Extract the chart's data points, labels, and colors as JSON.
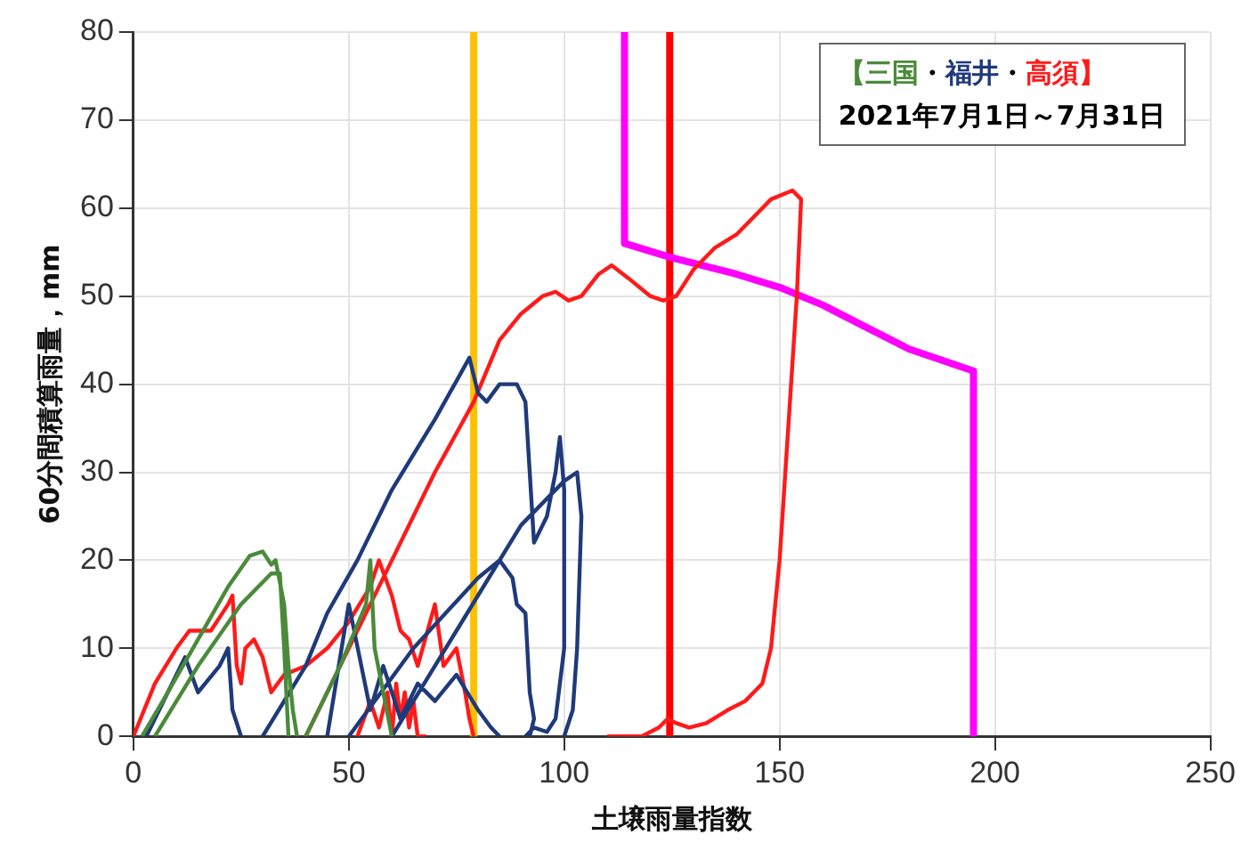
{
  "chart_data": {
    "type": "line",
    "xlabel": "土壌雨量指数",
    "ylabel": "60分間積算雨量，mm",
    "xlim": [
      0,
      250
    ],
    "ylim": [
      0,
      80
    ],
    "xticks": [
      0,
      50,
      100,
      150,
      200,
      250
    ],
    "yticks": [
      0,
      10,
      20,
      30,
      40,
      50,
      60,
      70,
      80
    ],
    "grid": true,
    "annotations": [
      "【三国・福井・高須】",
      "2021年7月1日～7月31日"
    ],
    "ref_lines": [
      {
        "axis": "x",
        "value": 79,
        "color": "#ffc000"
      },
      {
        "axis": "x",
        "value": 124.5,
        "color": "#ff0000"
      }
    ],
    "series": [
      {
        "color": "#4a8a3a",
        "x": [
          2,
          8,
          15,
          22,
          27,
          30,
          32,
          33,
          35,
          36,
          37,
          38,
          null,
          5,
          15,
          25,
          32,
          34,
          35,
          36,
          null,
          40,
          48,
          54,
          55,
          56,
          58,
          60
        ],
        "values": [
          0,
          5,
          11,
          17,
          20.5,
          21,
          19.5,
          20,
          15,
          8,
          3,
          0,
          null,
          0,
          8,
          15,
          18.5,
          18.5,
          10,
          0,
          null,
          0,
          8,
          15,
          20,
          10,
          5,
          0
        ]
      },
      {
        "color": "#1f3a7a",
        "x": [
          30,
          40,
          45,
          52,
          60,
          70,
          78,
          80,
          82,
          85,
          89,
          91,
          92,
          93,
          96,
          98,
          99,
          100,
          100,
          98,
          96,
          93,
          91,
          null,
          50,
          65,
          80,
          85,
          88,
          89,
          91,
          92,
          93,
          92,
          null,
          60,
          75,
          90,
          100,
          103,
          104,
          103,
          102,
          100,
          null,
          3,
          8,
          12,
          15,
          20,
          22,
          23,
          25,
          null,
          45,
          50,
          55,
          58,
          62,
          66,
          70,
          75,
          80,
          83,
          85
        ],
        "values": [
          0,
          8,
          14,
          20,
          28,
          36,
          43,
          39,
          38,
          40,
          40,
          38,
          30,
          22,
          25,
          30,
          34,
          28,
          10,
          2,
          0.5,
          1,
          0,
          null,
          0,
          10,
          18,
          20,
          18,
          15,
          14,
          5,
          2,
          0,
          null,
          0,
          12,
          24,
          29,
          30,
          25,
          10,
          3,
          0,
          null,
          0,
          5,
          9,
          5,
          8,
          10,
          3,
          0,
          null,
          0,
          15,
          3,
          8,
          2,
          6,
          4,
          7,
          3,
          1,
          0
        ]
      },
      {
        "color": "#ff1a1a",
        "x": [
          40,
          55,
          70,
          79,
          85,
          90,
          95,
          98,
          101,
          104,
          108,
          111,
          115,
          120,
          123,
          126,
          130,
          135,
          140,
          144,
          148,
          153,
          155,
          154,
          152,
          150,
          148,
          146,
          144,
          142,
          138,
          133,
          129,
          126,
          124,
          122,
          118,
          110,
          null,
          0,
          5,
          10,
          13,
          18,
          22,
          23,
          24,
          25,
          26,
          28,
          30,
          32,
          35,
          40,
          45,
          50,
          55,
          57,
          60,
          62,
          64,
          66,
          70,
          72,
          75,
          77,
          78,
          79,
          null,
          52,
          55,
          57,
          59,
          60,
          61,
          62,
          63,
          64,
          65,
          66,
          68
        ],
        "values": [
          0,
          15,
          30,
          38,
          45,
          48,
          50,
          50.5,
          49.5,
          50,
          52.5,
          53.5,
          52,
          50,
          49.5,
          50,
          53,
          55.5,
          57,
          59,
          61,
          62,
          61,
          50,
          35,
          20,
          10,
          6,
          5,
          4,
          3,
          1.5,
          1,
          1.5,
          2,
          1,
          0,
          0,
          null,
          0,
          6,
          10,
          12,
          12,
          15,
          16,
          8,
          6,
          10,
          11,
          9,
          5,
          7,
          8,
          10,
          13,
          17,
          20,
          16,
          12,
          11,
          8,
          15,
          8,
          10,
          5,
          2,
          0,
          null,
          0,
          4,
          1,
          5,
          0,
          6,
          2,
          5,
          1,
          4,
          0,
          0
        ]
      },
      {
        "color": "#ff00ff",
        "x": [
          114,
          114,
          124,
          140,
          150,
          160,
          170,
          180,
          195,
          195
        ],
        "values": [
          80,
          56,
          54.5,
          52.5,
          51,
          49,
          46.5,
          44,
          41.5,
          0
        ]
      }
    ]
  }
}
